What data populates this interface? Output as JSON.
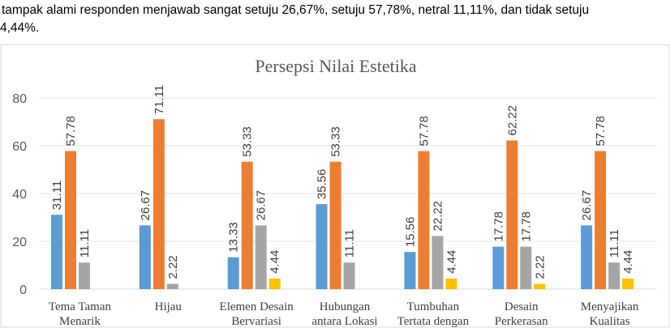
{
  "caption": {
    "line1": "tampak alami responden menjawab sangat setuju 26,67%, setuju 57,78%, netral 11,11%, dan tidak setuju",
    "line2": "4,44%."
  },
  "chart_data": {
    "type": "bar",
    "title": "Persepsi Nilai Estetika",
    "categories": [
      [
        "Tema Taman",
        "Menarik"
      ],
      [
        "Hijau"
      ],
      [
        "Elemen Desain",
        "Bervariasi"
      ],
      [
        "Hubungan",
        "antara Lokasi"
      ],
      [
        "Tumbuhan",
        "Tertata dengan"
      ],
      [
        "Desain",
        "Perkerasan"
      ],
      [
        "Menyajikan",
        "Kualitas"
      ]
    ],
    "series": [
      {
        "color": "#5B9BD5",
        "values": [
          31.11,
          26.67,
          13.33,
          35.56,
          15.56,
          17.78,
          26.67
        ]
      },
      {
        "color": "#ED7D31",
        "values": [
          57.78,
          71.11,
          53.33,
          53.33,
          57.78,
          62.22,
          57.78
        ]
      },
      {
        "color": "#A5A5A5",
        "values": [
          11.11,
          2.22,
          26.67,
          11.11,
          22.22,
          17.78,
          11.11
        ]
      },
      {
        "color": "#FFC000",
        "values": [
          0,
          0,
          4.44,
          0,
          4.44,
          2.22,
          4.44
        ]
      }
    ],
    "ylim": [
      0,
      80
    ],
    "yticks": [
      0,
      20,
      40,
      60,
      80
    ],
    "grid": true,
    "legend": "none"
  }
}
